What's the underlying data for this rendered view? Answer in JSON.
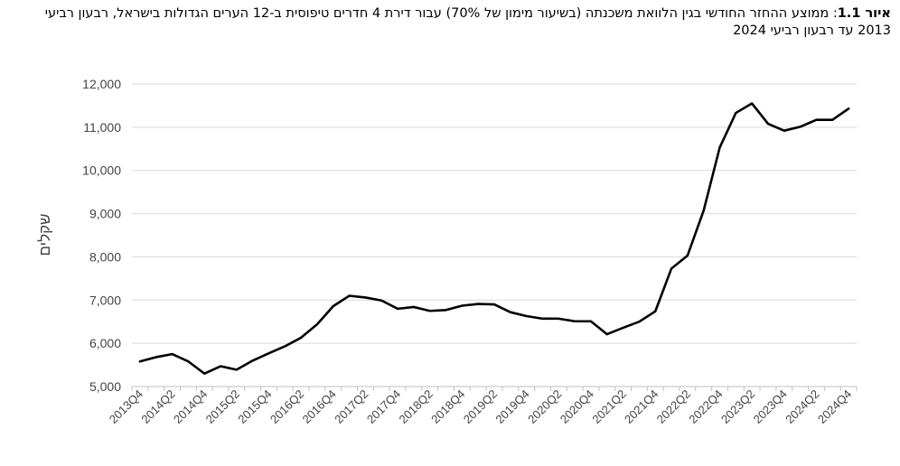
{
  "figure": {
    "label": "איור 1.1",
    "caption": ": ממוצע ההחזר החודשי בגין הלוואת משכנתה (בשיעור מימון של 70%) עבור דירת 4 חדרים טיפוסית ב-12 הערים הגדולות בישראל, רבעון רביעי 2013 עד רבעון רביעי 2024"
  },
  "chart_data": {
    "type": "line",
    "ylabel": "שקלים",
    "ylim": [
      5000,
      12000
    ],
    "yticks": [
      5000,
      6000,
      7000,
      8000,
      9000,
      10000,
      11000,
      12000
    ],
    "ytick_labels": [
      "5,000",
      "6,000",
      "7,000",
      "8,000",
      "9,000",
      "10,000",
      "11,000",
      "12,000"
    ],
    "xtick_labels": [
      "2013Q4",
      "2014Q2",
      "2014Q4",
      "2015Q2",
      "2015Q4",
      "2016Q2",
      "2016Q4",
      "2017Q2",
      "2017Q4",
      "2018Q2",
      "2018Q4",
      "2019Q2",
      "2019Q4",
      "2020Q2",
      "2020Q4",
      "2021Q2",
      "2021Q4",
      "2022Q2",
      "2022Q4",
      "2023Q2",
      "2023Q4",
      "2024Q2",
      "2024Q4"
    ],
    "grid": true,
    "legend": "none",
    "line_color": "#000000",
    "categories": [
      "2013Q4",
      "2014Q1",
      "2014Q2",
      "2014Q3",
      "2014Q4",
      "2015Q1",
      "2015Q2",
      "2015Q3",
      "2015Q4",
      "2016Q1",
      "2016Q2",
      "2016Q3",
      "2016Q4",
      "2017Q1",
      "2017Q2",
      "2017Q3",
      "2017Q4",
      "2018Q1",
      "2018Q2",
      "2018Q3",
      "2018Q4",
      "2019Q1",
      "2019Q2",
      "2019Q3",
      "2019Q4",
      "2020Q1",
      "2020Q2",
      "2020Q3",
      "2020Q4",
      "2021Q1",
      "2021Q2",
      "2021Q3",
      "2021Q4",
      "2022Q1",
      "2022Q2",
      "2022Q3",
      "2022Q4",
      "2023Q1",
      "2023Q2",
      "2023Q3",
      "2023Q4",
      "2024Q1",
      "2024Q2",
      "2024Q3",
      "2024Q4"
    ],
    "values": [
      5580,
      5680,
      5750,
      5580,
      5300,
      5470,
      5390,
      5600,
      5770,
      5930,
      6130,
      6440,
      6860,
      7100,
      7060,
      6990,
      6800,
      6840,
      6750,
      6770,
      6870,
      6910,
      6900,
      6720,
      6630,
      6570,
      6570,
      6510,
      6510,
      6210,
      6360,
      6500,
      6740,
      7730,
      8030,
      9070,
      10530,
      11330,
      11550,
      11080,
      10920,
      11010,
      11170,
      11170,
      11430
    ]
  }
}
